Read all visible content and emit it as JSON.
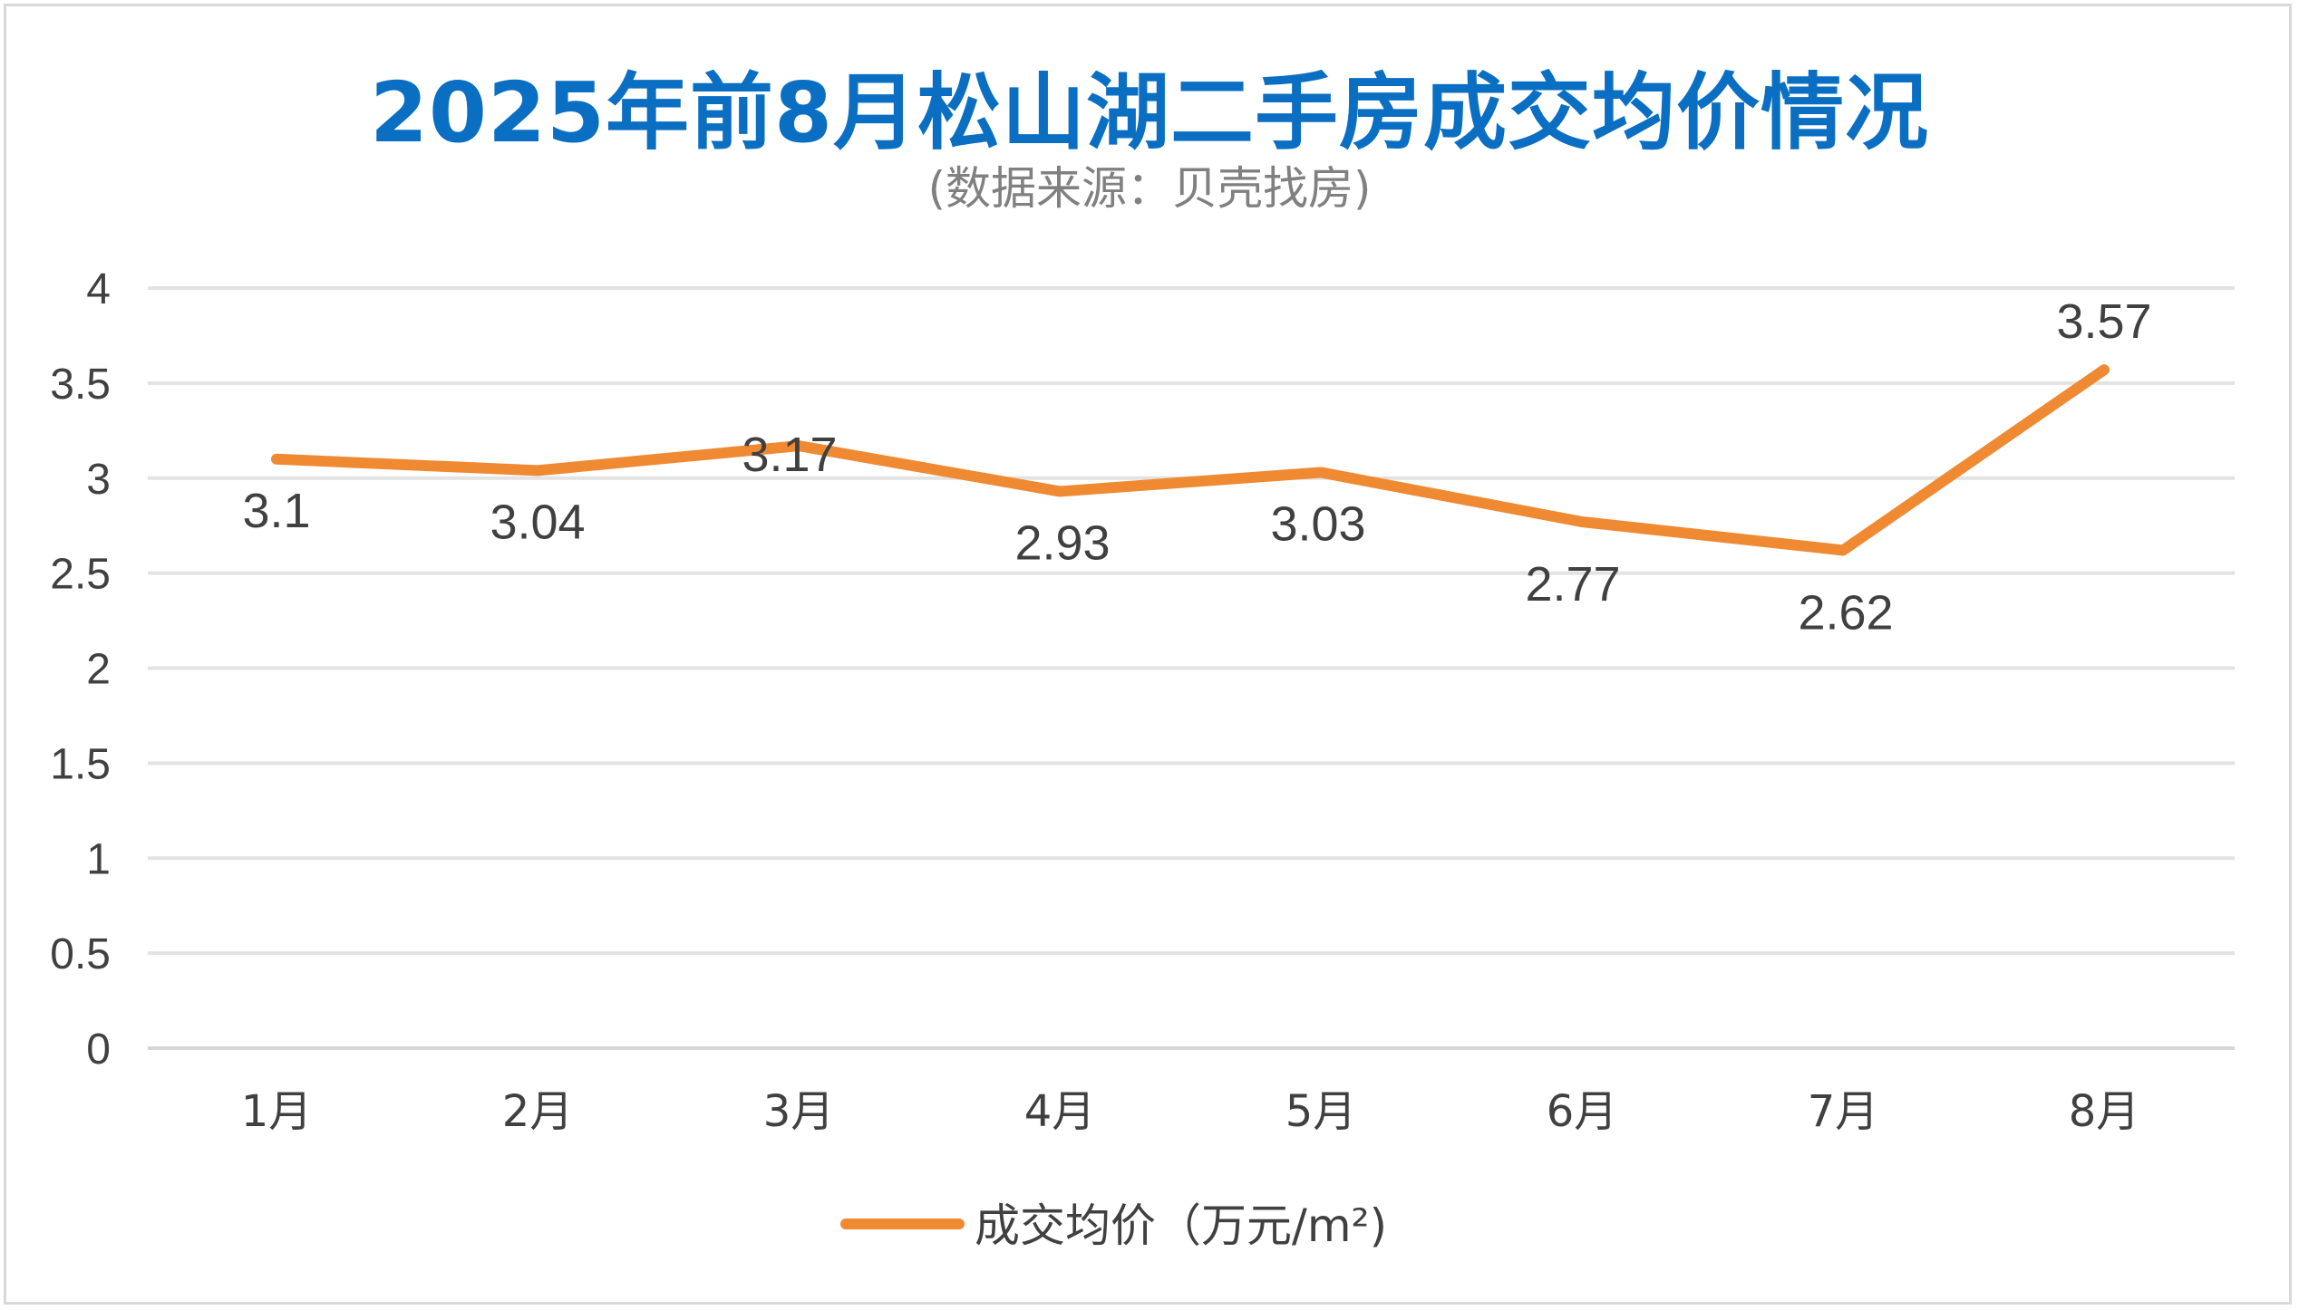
{
  "chart_data": {
    "type": "line",
    "title": "2025年前8月松山湖二手房成交均价情况",
    "subtitle": "(数据来源：贝壳找房)",
    "categories": [
      "1月",
      "2月",
      "3月",
      "4月",
      "5月",
      "6月",
      "7月",
      "8月"
    ],
    "series": [
      {
        "name": "成交均价（万元/m²)",
        "values": [
          3.1,
          3.04,
          3.17,
          2.93,
          3.03,
          2.77,
          2.62,
          3.57
        ],
        "labels": [
          "3.1",
          "3.04",
          "3.17",
          "2.93",
          "3.03",
          "2.77",
          "2.62",
          "3.57"
        ],
        "color": "#ef8a33"
      }
    ],
    "ylim": [
      0,
      4
    ],
    "yticks": [
      "0",
      "0.5",
      "1",
      "1.5",
      "2",
      "2.5",
      "3",
      "3.5",
      "4"
    ],
    "ytick_values": [
      0,
      0.5,
      1,
      1.5,
      2,
      2.5,
      3,
      3.5,
      4
    ],
    "grid": true,
    "legend_position": "bottom",
    "xlabel": "",
    "ylabel": ""
  },
  "colors": {
    "title": "#0a6fc2",
    "subtitle": "#808080",
    "grid": "#e3e3e3",
    "text": "#404040"
  }
}
